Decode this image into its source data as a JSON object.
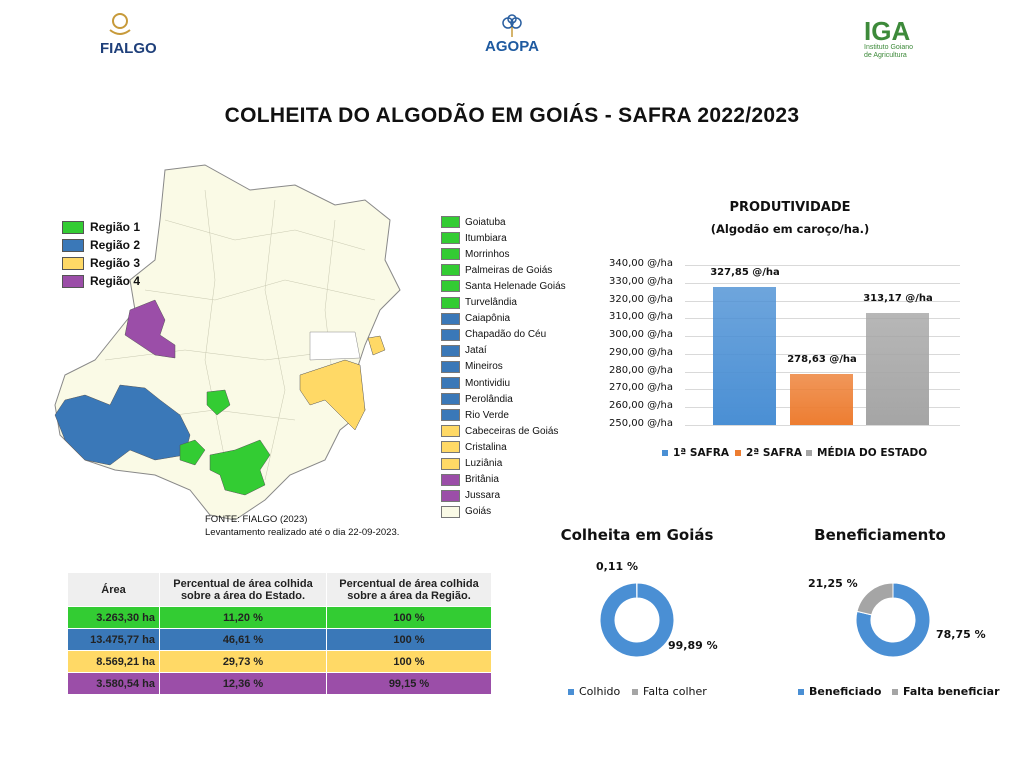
{
  "logos": {
    "fialgo": "FIALGO",
    "agopa": "AGOPA",
    "iga": "IGA",
    "iga_sub": "Instituto Goiano de Agricultura"
  },
  "title": "COLHEITA DO ALGODÃO EM GOIÁS - SAFRA 2022/2023",
  "map": {
    "regions": [
      {
        "label": "Região 1",
        "color": "#33cc33"
      },
      {
        "label": "Região 2",
        "color": "#3a78b8"
      },
      {
        "label": "Região 3",
        "color": "#ffd966"
      },
      {
        "label": "Região 4",
        "color": "#9b4ea8"
      }
    ],
    "municipalities": [
      {
        "label": "Goiatuba",
        "color": "#33cc33"
      },
      {
        "label": "Itumbiara",
        "color": "#33cc33"
      },
      {
        "label": "Morrinhos",
        "color": "#33cc33"
      },
      {
        "label": "Palmeiras de Goiás",
        "color": "#33cc33"
      },
      {
        "label": "Santa Helenade Goiás",
        "color": "#33cc33"
      },
      {
        "label": "Turvelândia",
        "color": "#33cc33"
      },
      {
        "label": "Caiapônia",
        "color": "#3a78b8"
      },
      {
        "label": "Chapadão do Céu",
        "color": "#3a78b8"
      },
      {
        "label": "Jataí",
        "color": "#3a78b8"
      },
      {
        "label": "Mineiros",
        "color": "#3a78b8"
      },
      {
        "label": "Montividiu",
        "color": "#3a78b8"
      },
      {
        "label": "Perolândia",
        "color": "#3a78b8"
      },
      {
        "label": "Rio Verde",
        "color": "#3a78b8"
      },
      {
        "label": "Cabeceiras de Goiás",
        "color": "#ffd966"
      },
      {
        "label": "Cristalina",
        "color": "#ffd966"
      },
      {
        "label": "Luziânia",
        "color": "#ffd966"
      },
      {
        "label": "Britânia",
        "color": "#9b4ea8"
      },
      {
        "label": "Jussara",
        "color": "#9b4ea8"
      },
      {
        "label": "Goiás",
        "color": "#fafae6"
      }
    ],
    "source": "FONTE: FIALGO (2023)",
    "survey": "Levantamento realizado até o dia 22-09-2023."
  },
  "table": {
    "headers": [
      "Área",
      "Percentual de área colhida sobre a área do Estado.",
      "Percentual de área colhida sobre a área da Região."
    ],
    "rows": [
      {
        "area": "3.263,30 ha",
        "state": "11,20 %",
        "region": "100 %",
        "color": "#33cc33"
      },
      {
        "area": "13.475,77 ha",
        "state": "46,61 %",
        "region": "100 %",
        "color": "#3a78b8"
      },
      {
        "area": "8.569,21 ha",
        "state": "29,73 %",
        "region": "100 %",
        "color": "#ffd966"
      },
      {
        "area": "3.580,54 ha",
        "state": "12,36 %",
        "region": "99,15 %",
        "color": "#9b4ea8"
      }
    ]
  },
  "chart_data": [
    {
      "type": "bar",
      "title": "PRODUTIVIDADE",
      "subtitle": "(Algodão em caroço/ha.)",
      "categories": [
        "1ª SAFRA",
        "2ª SAFRA",
        "MÉDIA DO ESTADO"
      ],
      "values": [
        327.85,
        278.63,
        313.17
      ],
      "data_labels": [
        "327,85 @/ha",
        "278,63 @/ha",
        "313,17 @/ha"
      ],
      "colors": [
        "#4a8fd4",
        "#ed7d31",
        "#a5a5a5"
      ],
      "ylim": [
        250,
        340
      ],
      "yticks": [
        "250,00 @/ha",
        "260,00 @/ha",
        "270,00 @/ha",
        "280,00 @/ha",
        "290,00 @/ha",
        "300,00 @/ha",
        "310,00 @/ha",
        "320,00 @/ha",
        "330,00 @/ha",
        "340,00 @/ha"
      ],
      "grid": true,
      "legend": "bottom"
    },
    {
      "type": "pie",
      "title": "Colheita em Goiás",
      "labels": [
        "Colhido",
        "Falta colher"
      ],
      "values": [
        99.89,
        0.11
      ],
      "data_labels": [
        "99,89 %",
        "0,11 %"
      ],
      "colors": [
        "#4a8fd4",
        "#a5a5a5"
      ],
      "legend": "bottom"
    },
    {
      "type": "pie",
      "title": "Beneficiamento",
      "labels": [
        "Beneficiado",
        "Falta beneficiar"
      ],
      "values": [
        78.75,
        21.25
      ],
      "data_labels": [
        "78,75 %",
        "21,25 %"
      ],
      "colors": [
        "#4a8fd4",
        "#a5a5a5"
      ],
      "legend": "bottom"
    }
  ]
}
